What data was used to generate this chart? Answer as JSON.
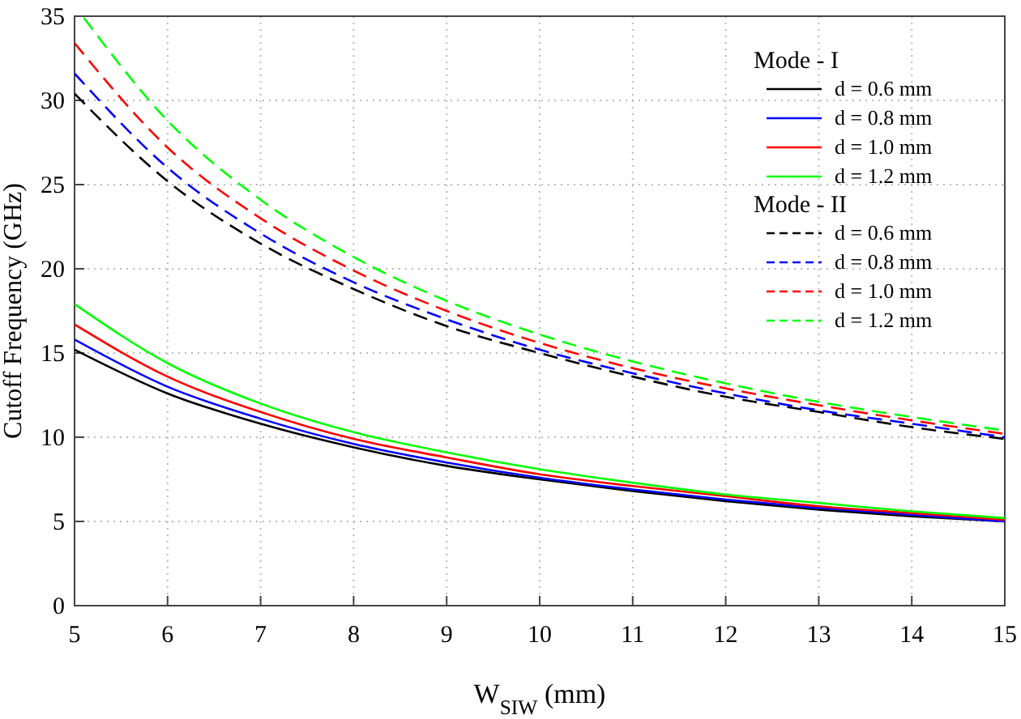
{
  "chart_data": {
    "type": "line",
    "xlabel": "W$_{SIW}$ (mm)",
    "ylabel": "Cutoff Frequency (GHz)",
    "xlim": [
      5,
      15
    ],
    "ylim": [
      0,
      35
    ],
    "xticks": [
      5,
      6,
      7,
      8,
      9,
      10,
      11,
      12,
      13,
      14,
      15
    ],
    "yticks": [
      0,
      5,
      10,
      15,
      20,
      25,
      30,
      35
    ],
    "grid": true,
    "legend": "top right",
    "annotations": [
      "Mode - I",
      "Mode - II"
    ],
    "x": [
      5,
      6,
      7,
      8,
      9,
      10,
      11,
      12,
      13,
      14,
      15
    ],
    "series": [
      {
        "name": "d = 0.6 mm",
        "color": "#000000",
        "line_style": "solid",
        "values": [
          15.2,
          12.6,
          10.8,
          9.4,
          8.3,
          7.5,
          6.8,
          6.2,
          5.7,
          5.3,
          5.0
        ]
      },
      {
        "name": "d = 0.8 mm",
        "color": "#0000ff",
        "line_style": "solid",
        "values": [
          15.8,
          13.0,
          11.1,
          9.6,
          8.5,
          7.6,
          6.9,
          6.3,
          5.8,
          5.4,
          5.0
        ]
      },
      {
        "name": "d = 1.0 mm",
        "color": "#ff0000",
        "line_style": "solid",
        "values": [
          16.7,
          13.6,
          11.5,
          9.9,
          8.8,
          7.8,
          7.1,
          6.5,
          5.9,
          5.5,
          5.1
        ]
      },
      {
        "name": "d = 1.2 mm",
        "color": "#00ff00",
        "line_style": "solid",
        "values": [
          17.9,
          14.4,
          12.0,
          10.3,
          9.1,
          8.1,
          7.3,
          6.6,
          6.1,
          5.6,
          5.2
        ]
      },
      {
        "name": "d = 0.6 mm",
        "color": "#000000",
        "line_style": "dashed",
        "values": [
          30.4,
          25.2,
          21.5,
          18.8,
          16.6,
          15.0,
          13.6,
          12.4,
          11.5,
          10.6,
          9.9
        ]
      },
      {
        "name": "d = 0.8 mm",
        "color": "#0000ff",
        "line_style": "dashed",
        "values": [
          31.6,
          26.0,
          22.1,
          19.2,
          17.0,
          15.2,
          13.8,
          12.6,
          11.6,
          10.8,
          10.0
        ]
      },
      {
        "name": "d = 1.0 mm",
        "color": "#ff0000",
        "line_style": "dashed",
        "values": [
          33.4,
          27.2,
          23.0,
          19.9,
          17.5,
          15.6,
          14.1,
          12.9,
          11.9,
          11.0,
          10.2
        ]
      },
      {
        "name": "d = 1.2 mm",
        "color": "#00ff00",
        "line_style": "dashed",
        "x": [
          5.1,
          6,
          7,
          8,
          9,
          10,
          11,
          12,
          13,
          14,
          15
        ],
        "values": [
          34.9,
          28.8,
          24.1,
          20.7,
          18.1,
          16.1,
          14.5,
          13.2,
          12.1,
          11.2,
          10.4
        ]
      }
    ]
  }
}
